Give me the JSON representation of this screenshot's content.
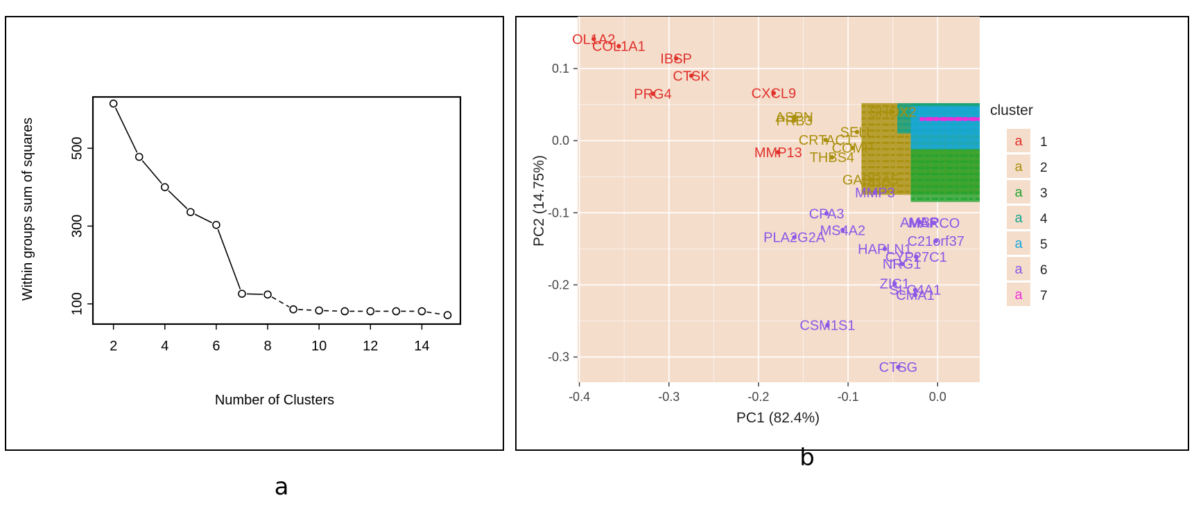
{
  "panel_labels": {
    "a": "a",
    "b": "b"
  },
  "chart_data": [
    {
      "type": "line",
      "panel": "a",
      "title": "",
      "xlabel": "Number of Clusters",
      "ylabel": "Within groups sum of squares",
      "xlim": [
        1.2,
        15.5
      ],
      "ylim": [
        48,
        632
      ],
      "xticks": [
        2,
        4,
        6,
        8,
        10,
        12,
        14
      ],
      "yticks": [
        100,
        300,
        500
      ],
      "x": [
        2,
        3,
        4,
        5,
        6,
        7,
        8,
        9,
        10,
        11,
        12,
        13,
        14,
        15
      ],
      "y": [
        615,
        478,
        400,
        336,
        303,
        126,
        124,
        86,
        83,
        81,
        81,
        81,
        81,
        71
      ],
      "line_style": "solid for 2–8, dashed for 8–15"
    },
    {
      "type": "scatter",
      "panel": "b",
      "xlabel": "PC1 (82.4%)",
      "ylabel": "PC2 (14.75%)",
      "xlim": [
        -0.402,
        0.047
      ],
      "ylim": [
        -0.335,
        0.172
      ],
      "xticks": [
        -0.4,
        -0.3,
        -0.2,
        -0.1,
        0.0
      ],
      "xtick_labels": [
        "-0.4",
        "-0.3",
        "-0.2",
        "-0.1",
        "0.0"
      ],
      "yticks": [
        0.1,
        0.0,
        -0.1,
        -0.2,
        -0.3
      ],
      "ytick_labels": [
        "0.1",
        "0.0",
        "-0.1",
        "-0.2",
        "-0.3"
      ],
      "legend": {
        "title": "cluster",
        "key_glyph": "a",
        "entries": [
          "1",
          "2",
          "3",
          "4",
          "5",
          "6",
          "7"
        ],
        "placement": "right"
      },
      "cluster_colors": {
        "1": "#E0312A",
        "2": "#A8900C",
        "3": "#22A530",
        "4": "#14A38A",
        "5": "#1AA7DD",
        "6": "#8A57E6",
        "7": "#EE2FD8"
      },
      "background": "#F5DDCC",
      "labeled_points": [
        {
          "label": "OL1A2",
          "x": -0.384,
          "y": 0.141,
          "cluster": "1"
        },
        {
          "label": "COL1A1",
          "x": -0.356,
          "y": 0.131,
          "cluster": "1"
        },
        {
          "label": "IBSP",
          "x": -0.292,
          "y": 0.114,
          "cluster": "1"
        },
        {
          "label": "CTSK",
          "x": -0.275,
          "y": 0.09,
          "cluster": "1"
        },
        {
          "label": "PRG4",
          "x": -0.318,
          "y": 0.065,
          "cluster": "1"
        },
        {
          "label": "CXCL9",
          "x": -0.183,
          "y": 0.066,
          "cluster": "1"
        },
        {
          "label": "MMP13",
          "x": -0.178,
          "y": -0.016,
          "cluster": "1"
        },
        {
          "label": "ASPN",
          "x": -0.16,
          "y": 0.033,
          "cluster": "2"
        },
        {
          "label": "SHOX2",
          "x": -0.05,
          "y": 0.04,
          "cluster": "2"
        },
        {
          "label": "PRB3",
          "x": -0.16,
          "y": 0.028,
          "cluster": "2"
        },
        {
          "label": "CRTAC1",
          "x": -0.125,
          "y": 0.001,
          "cluster": "2"
        },
        {
          "label": "SELL",
          "x": -0.09,
          "y": 0.012,
          "cluster": "2"
        },
        {
          "label": "COMP",
          "x": -0.095,
          "y": -0.01,
          "cluster": "2"
        },
        {
          "label": "THBS4",
          "x": -0.118,
          "y": -0.023,
          "cluster": "2"
        },
        {
          "label": "GABRA5",
          "x": -0.075,
          "y": -0.054,
          "cluster": "2"
        },
        {
          "label": "MMP3",
          "x": -0.07,
          "y": -0.072,
          "cluster": "6"
        },
        {
          "label": "CPA3",
          "x": -0.124,
          "y": -0.101,
          "cluster": "6"
        },
        {
          "label": "PLA2G2A",
          "x": -0.16,
          "y": -0.134,
          "cluster": "6"
        },
        {
          "label": "MS4A2",
          "x": -0.106,
          "y": -0.124,
          "cluster": "6"
        },
        {
          "label": "AMBP",
          "x": -0.02,
          "y": -0.113,
          "cluster": "6"
        },
        {
          "label": "MARCO",
          "x": -0.004,
          "y": -0.114,
          "cluster": "6"
        },
        {
          "label": "C21orf37",
          "x": -0.002,
          "y": -0.139,
          "cluster": "6"
        },
        {
          "label": "HAPLN1",
          "x": -0.059,
          "y": -0.15,
          "cluster": "6"
        },
        {
          "label": "CYP27C1",
          "x": -0.024,
          "y": -0.161,
          "cluster": "6"
        },
        {
          "label": "NRG1",
          "x": -0.04,
          "y": -0.171,
          "cluster": "6"
        },
        {
          "label": "ZIC1",
          "x": -0.048,
          "y": -0.198,
          "cluster": "6"
        },
        {
          "label": "SLC4A1",
          "x": -0.025,
          "y": -0.207,
          "cluster": "6"
        },
        {
          "label": "CMA1",
          "x": -0.025,
          "y": -0.214,
          "cluster": "6"
        },
        {
          "label": "CSM1S1",
          "x": -0.123,
          "y": -0.256,
          "cluster": "6"
        },
        {
          "label": "CTSG",
          "x": -0.044,
          "y": -0.314,
          "cluster": "6"
        }
      ],
      "dense_region": {
        "x_range": [
          -0.05,
          0.047
        ],
        "y_range": [
          -0.085,
          0.052
        ],
        "layers_by_cluster": [
          {
            "cluster": "2",
            "x_range": [
              -0.085,
              0.047
            ],
            "y_range": [
              -0.075,
              0.052
            ]
          },
          {
            "cluster": "3",
            "x_range": [
              -0.03,
              0.047
            ],
            "y_range": [
              -0.085,
              0.052
            ]
          },
          {
            "cluster": "4",
            "x_range": [
              -0.045,
              0.047
            ],
            "y_range": [
              0.01,
              0.052
            ]
          },
          {
            "cluster": "5",
            "x_range": [
              -0.03,
              0.047
            ],
            "y_range": [
              -0.012,
              0.048
            ]
          },
          {
            "cluster": "7",
            "x_range": [
              -0.02,
              0.047
            ],
            "y_range": [
              0.028,
              0.032
            ]
          }
        ]
      }
    }
  ]
}
